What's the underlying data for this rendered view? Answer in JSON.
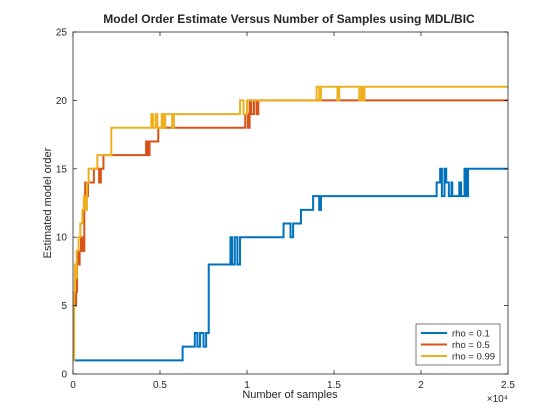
{
  "chart_data": {
    "type": "line",
    "title": "Model Order Estimate Versus Number of Samples using MDL/BIC",
    "xlabel": "Number of samples",
    "ylabel": "Estimated model order",
    "xlim": [
      0,
      25000
    ],
    "ylim": [
      0,
      25
    ],
    "x_ticks": [
      0,
      0.5,
      1,
      1.5,
      2,
      2.5
    ],
    "x_tick_labels": [
      "0",
      "0.5",
      "1",
      "1.5",
      "2",
      "2.5"
    ],
    "x_exponent_label": "×10⁴",
    "y_ticks": [
      0,
      5,
      10,
      15,
      20,
      25
    ],
    "y_tick_labels": [
      "0",
      "5",
      "10",
      "15",
      "20",
      "25"
    ],
    "grid": false,
    "legend_position": "bottom-right",
    "series": [
      {
        "name": "rho = 0.1",
        "color": "#0072BD",
        "points": [
          [
            0,
            1
          ],
          [
            6300,
            1
          ],
          [
            6300,
            2
          ],
          [
            7000,
            2
          ],
          [
            7000,
            3
          ],
          [
            7150,
            3
          ],
          [
            7150,
            2
          ],
          [
            7300,
            2
          ],
          [
            7300,
            3
          ],
          [
            7500,
            3
          ],
          [
            7500,
            2
          ],
          [
            7650,
            2
          ],
          [
            7650,
            3
          ],
          [
            7800,
            3
          ],
          [
            7800,
            8
          ],
          [
            9050,
            8
          ],
          [
            9050,
            10
          ],
          [
            9150,
            10
          ],
          [
            9150,
            8
          ],
          [
            9300,
            8
          ],
          [
            9300,
            10
          ],
          [
            9450,
            10
          ],
          [
            9450,
            8
          ],
          [
            9600,
            8
          ],
          [
            9600,
            10
          ],
          [
            12100,
            10
          ],
          [
            12100,
            11
          ],
          [
            12500,
            11
          ],
          [
            12500,
            10
          ],
          [
            12650,
            10
          ],
          [
            12650,
            11
          ],
          [
            13100,
            11
          ],
          [
            13100,
            12
          ],
          [
            13800,
            12
          ],
          [
            13800,
            13
          ],
          [
            14150,
            13
          ],
          [
            14150,
            12
          ],
          [
            14250,
            12
          ],
          [
            14250,
            13
          ],
          [
            20900,
            13
          ],
          [
            20900,
            14
          ],
          [
            21100,
            14
          ],
          [
            21100,
            15
          ],
          [
            21200,
            15
          ],
          [
            21200,
            13
          ],
          [
            21350,
            13
          ],
          [
            21350,
            15
          ],
          [
            21450,
            15
          ],
          [
            21450,
            14
          ],
          [
            21600,
            14
          ],
          [
            21600,
            13
          ],
          [
            21750,
            13
          ],
          [
            21750,
            14
          ],
          [
            21800,
            14
          ],
          [
            21800,
            13
          ],
          [
            22200,
            13
          ],
          [
            22200,
            14
          ],
          [
            22300,
            14
          ],
          [
            22300,
            13
          ],
          [
            22500,
            13
          ],
          [
            22500,
            15
          ],
          [
            22600,
            15
          ],
          [
            22600,
            13
          ],
          [
            22700,
            13
          ],
          [
            22700,
            15
          ],
          [
            25000,
            15
          ]
        ]
      },
      {
        "name": "rho = 0.5",
        "color": "#D95319",
        "points": [
          [
            0,
            1
          ],
          [
            60,
            1
          ],
          [
            60,
            5
          ],
          [
            100,
            5
          ],
          [
            100,
            6
          ],
          [
            140,
            6
          ],
          [
            140,
            5
          ],
          [
            180,
            5
          ],
          [
            180,
            6
          ],
          [
            230,
            6
          ],
          [
            230,
            9
          ],
          [
            290,
            9
          ],
          [
            290,
            8
          ],
          [
            380,
            8
          ],
          [
            380,
            9
          ],
          [
            460,
            9
          ],
          [
            460,
            10
          ],
          [
            550,
            10
          ],
          [
            550,
            9
          ],
          [
            650,
            9
          ],
          [
            650,
            13
          ],
          [
            700,
            13
          ],
          [
            700,
            14
          ],
          [
            760,
            14
          ],
          [
            760,
            13
          ],
          [
            860,
            13
          ],
          [
            860,
            14
          ],
          [
            1200,
            14
          ],
          [
            1200,
            15
          ],
          [
            1500,
            15
          ],
          [
            1500,
            14
          ],
          [
            1600,
            14
          ],
          [
            1600,
            15
          ],
          [
            1750,
            15
          ],
          [
            1750,
            16
          ],
          [
            4200,
            16
          ],
          [
            4200,
            17
          ],
          [
            4300,
            17
          ],
          [
            4300,
            16
          ],
          [
            4400,
            16
          ],
          [
            4400,
            17
          ],
          [
            4900,
            17
          ],
          [
            4900,
            18
          ],
          [
            9900,
            18
          ],
          [
            9900,
            19
          ],
          [
            10050,
            19
          ],
          [
            10050,
            18
          ],
          [
            10150,
            18
          ],
          [
            10150,
            20
          ],
          [
            10250,
            20
          ],
          [
            10250,
            19
          ],
          [
            10400,
            19
          ],
          [
            10400,
            20
          ],
          [
            10550,
            20
          ],
          [
            10550,
            19
          ],
          [
            10650,
            19
          ],
          [
            10650,
            20
          ],
          [
            25000,
            20
          ]
        ]
      },
      {
        "name": "rho = 0.99",
        "color": "#EDB120",
        "points": [
          [
            0,
            1
          ],
          [
            60,
            1
          ],
          [
            60,
            6
          ],
          [
            110,
            6
          ],
          [
            110,
            8
          ],
          [
            160,
            8
          ],
          [
            160,
            7
          ],
          [
            210,
            7
          ],
          [
            210,
            9
          ],
          [
            320,
            9
          ],
          [
            320,
            10
          ],
          [
            420,
            10
          ],
          [
            420,
            11
          ],
          [
            540,
            11
          ],
          [
            540,
            12
          ],
          [
            620,
            12
          ],
          [
            620,
            13
          ],
          [
            700,
            13
          ],
          [
            700,
            12
          ],
          [
            800,
            12
          ],
          [
            800,
            14
          ],
          [
            900,
            14
          ],
          [
            900,
            15
          ],
          [
            1400,
            15
          ],
          [
            1400,
            16
          ],
          [
            2200,
            16
          ],
          [
            2200,
            18
          ],
          [
            4500,
            18
          ],
          [
            4500,
            19
          ],
          [
            4600,
            19
          ],
          [
            4600,
            18
          ],
          [
            4750,
            18
          ],
          [
            4750,
            19
          ],
          [
            4850,
            19
          ],
          [
            4850,
            18
          ],
          [
            5100,
            18
          ],
          [
            5100,
            19
          ],
          [
            5200,
            19
          ],
          [
            5200,
            18
          ],
          [
            5300,
            18
          ],
          [
            5300,
            19
          ],
          [
            5700,
            19
          ],
          [
            5700,
            18
          ],
          [
            5800,
            18
          ],
          [
            5800,
            19
          ],
          [
            9600,
            19
          ],
          [
            9600,
            20
          ],
          [
            9800,
            20
          ],
          [
            9800,
            19
          ],
          [
            10000,
            19
          ],
          [
            10000,
            20
          ],
          [
            14000,
            20
          ],
          [
            14000,
            21
          ],
          [
            14150,
            21
          ],
          [
            14150,
            20
          ],
          [
            14250,
            20
          ],
          [
            14250,
            21
          ],
          [
            15200,
            21
          ],
          [
            15200,
            20
          ],
          [
            15300,
            20
          ],
          [
            15300,
            21
          ],
          [
            16450,
            21
          ],
          [
            16450,
            20
          ],
          [
            16550,
            20
          ],
          [
            16550,
            21
          ],
          [
            16650,
            21
          ],
          [
            16650,
            20
          ],
          [
            16750,
            20
          ],
          [
            16750,
            21
          ],
          [
            25000,
            21
          ]
        ]
      }
    ]
  }
}
